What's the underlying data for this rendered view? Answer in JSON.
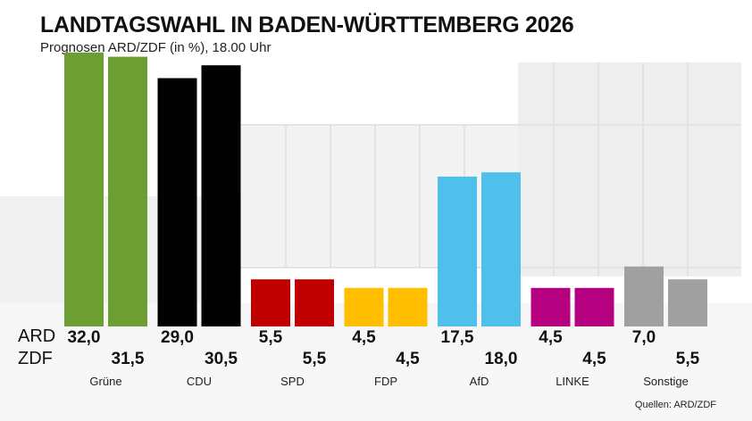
{
  "header": {
    "title": "LANDTAGSWAHL IN BADEN-WÜRTTEMBERG 2026",
    "subtitle": "Prognosen ARD/ZDF (in %), 18.00 Uhr"
  },
  "rows": {
    "ard": "ARD",
    "zdf": "ZDF"
  },
  "source": "Quellen: ARD/ZDF",
  "chart_data": {
    "type": "bar",
    "title": "LANDTAGSWAHL IN BADEN-WÜRTTEMBERG 2026",
    "subtitle": "Prognosen ARD/ZDF (in %), 18.00 Uhr",
    "categories": [
      "Grüne",
      "CDU",
      "SPD",
      "FDP",
      "AfD",
      "LINKE",
      "Sonstige"
    ],
    "series": [
      {
        "name": "ARD",
        "values": [
          32.0,
          29.0,
          5.5,
          4.5,
          17.5,
          4.5,
          7.0
        ],
        "labels": [
          "32,0",
          "29,0",
          "5,5",
          "4,5",
          "17,5",
          "4,5",
          "7,0"
        ]
      },
      {
        "name": "ZDF",
        "values": [
          31.5,
          30.5,
          5.5,
          4.5,
          18.0,
          4.5,
          5.5
        ],
        "labels": [
          "31,5",
          "30,5",
          "5,5",
          "4,5",
          "18,0",
          "4,5",
          "5,5"
        ]
      }
    ],
    "colors": [
      "#6d9e33",
      "#000000",
      "#c00000",
      "#ffbf00",
      "#4fc0ec",
      "#b5007f",
      "#a0a0a0"
    ],
    "ylim": [
      0,
      35
    ],
    "grid": false,
    "legend": "left"
  }
}
